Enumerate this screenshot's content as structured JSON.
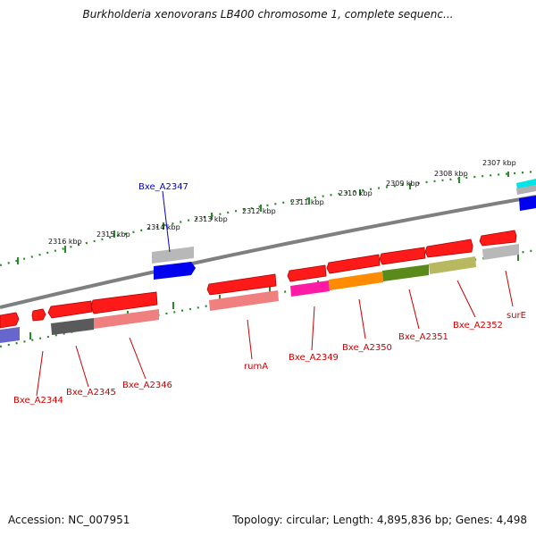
{
  "title": "Burkholderia xenovorans LB400 chromosome 1, complete sequenc...",
  "footer": {
    "accession": "Accession: NC_007951",
    "summary": "Topology: circular; Length: 4,895,836 bp; Genes: 4,498"
  },
  "colors": {
    "backbone": "#7f7f7f",
    "ruler": "#2a8a2a",
    "gene_label": "#cc0000",
    "highlight_label": "#0000cc",
    "plus_strand_cds": "#ff1a1a",
    "label_line_red": "#cc0000",
    "label_line_blue": "#0000cc"
  },
  "scale_labels": [
    "2307 kbp",
    "2308 kbp",
    "2309 kbp",
    "2310 kbp",
    "2311 kbp",
    "2312 kbp",
    "2313 kbp",
    "2314 kbp",
    "2315 kbp",
    "2316 kbp"
  ],
  "gene_labels": [
    {
      "name": "Bxe_A2347",
      "color": "#0000cc"
    },
    {
      "name": "Bxe_A2344",
      "color": "#cc0000"
    },
    {
      "name": "Bxe_A2345",
      "color": "#cc0000"
    },
    {
      "name": "Bxe_A2346",
      "color": "#cc0000"
    },
    {
      "name": "rumA",
      "color": "#cc0000"
    },
    {
      "name": "Bxe_A2349",
      "color": "#cc0000"
    },
    {
      "name": "Bxe_A2350",
      "color": "#cc0000"
    },
    {
      "name": "Bxe_A2351",
      "color": "#cc0000"
    },
    {
      "name": "Bxe_A2352",
      "color": "#cc0000"
    },
    {
      "name": "surE",
      "color": "#cc0000"
    }
  ]
}
